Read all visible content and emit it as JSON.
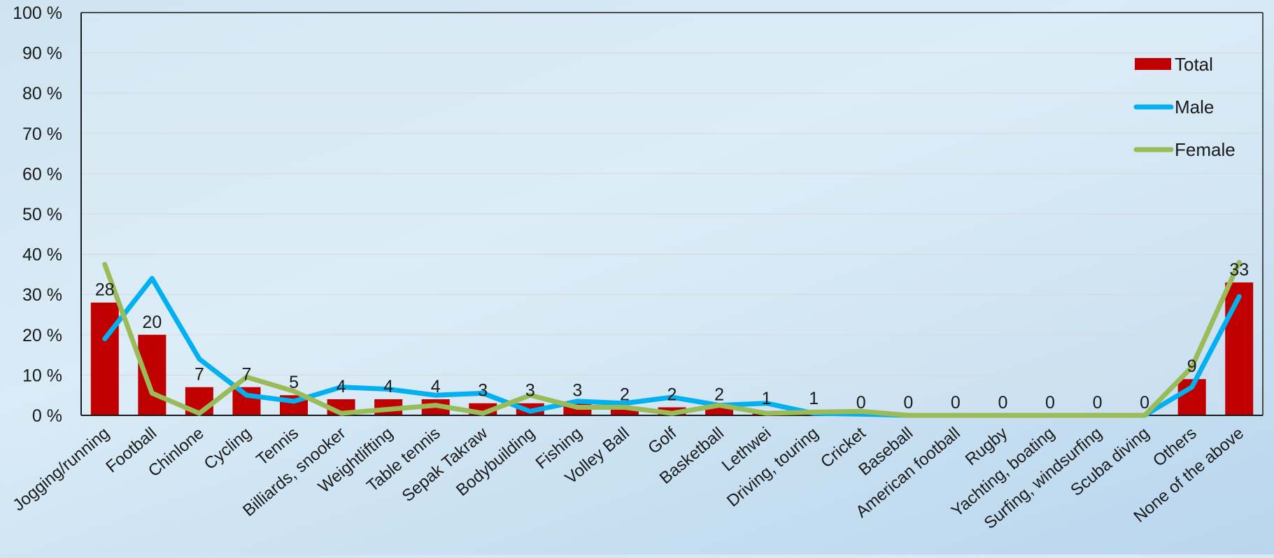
{
  "chart_data": {
    "type": "bar",
    "title": "",
    "xlabel": "",
    "ylabel": "",
    "ylim": [
      0,
      100
    ],
    "ytick_labels": [
      "0 %",
      "10 %",
      "20 %",
      "30 %",
      "40 %",
      "50 %",
      "60 %",
      "70 %",
      "80 %",
      "90 %",
      "100 %"
    ],
    "categories": [
      "Jogging/running",
      "Football",
      "Chinlone",
      "Cycling",
      "Tennis",
      "Billiards, snooker",
      "Weightlifting",
      "Table tennis",
      "Sepak Takraw",
      "Bodybuilding",
      "Fishing",
      "Volley Ball",
      "Golf",
      "Basketball",
      "Lethwei",
      "Driving, touring",
      "Cricket",
      "Baseball",
      "American football",
      "Rugby",
      "Yachting, boating",
      "Surfing, windsurfing",
      "Scuba diving",
      "Others",
      "None of the above"
    ],
    "series": [
      {
        "name": "Total",
        "kind": "bar",
        "color": "#c00000",
        "values": [
          28,
          20,
          7,
          7,
          5,
          4,
          4,
          4,
          3,
          3,
          3,
          2,
          2,
          2,
          1,
          1,
          0,
          0,
          0,
          0,
          0,
          0,
          0,
          9,
          33
        ],
        "labels": [
          "28",
          "20",
          "7",
          "7",
          "5",
          "4",
          "4",
          "4",
          "3",
          "3",
          "3",
          "2",
          "2",
          "2",
          "1",
          "1",
          "0",
          "0",
          "0",
          "0",
          "0",
          "0",
          "0",
          "9",
          "33"
        ]
      },
      {
        "name": "Male",
        "kind": "line",
        "color": "#00b0f0",
        "values": [
          19,
          34,
          14,
          5,
          3.5,
          7,
          6.5,
          5,
          5.5,
          1,
          3.5,
          3,
          4.5,
          2.5,
          3,
          0.5,
          0.3,
          0,
          0,
          0,
          0,
          0,
          0,
          7,
          29.5
        ]
      },
      {
        "name": "Female",
        "kind": "line",
        "color": "#9bbb59",
        "values": [
          37.5,
          5.5,
          0.5,
          9.5,
          6,
          0.5,
          1.5,
          2.5,
          0.5,
          5,
          2,
          2,
          0.5,
          2.5,
          0.5,
          0.8,
          1,
          0,
          0,
          0,
          0,
          0,
          0,
          12,
          38
        ]
      }
    ],
    "grid": true,
    "legend": "top-right"
  }
}
